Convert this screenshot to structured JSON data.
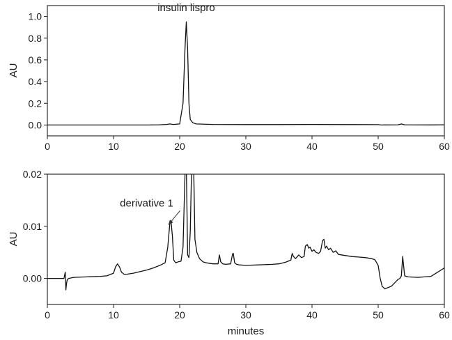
{
  "chart_data": [
    {
      "type": "line",
      "title": "",
      "xlabel": "",
      "ylabel": "AU",
      "xlim": [
        0,
        60
      ],
      "ylim": [
        -0.1,
        1.1
      ],
      "xticks": [
        0,
        10,
        20,
        30,
        40,
        50,
        60
      ],
      "yticks": [
        0.0,
        0.2,
        0.4,
        0.6,
        0.8,
        1.0
      ],
      "ytick_labels": [
        "0.0",
        "0.2",
        "0.4",
        "0.6",
        "0.8",
        "1.0"
      ],
      "grid": false,
      "annotations": [
        {
          "text": "insulin lispro",
          "x": 21,
          "y": 1.05
        }
      ],
      "series": [
        {
          "x": [
            0,
            5,
            10,
            15,
            17,
            18,
            18.5,
            19,
            20,
            20.5,
            20.8,
            21.0,
            21.2,
            21.4,
            21.6,
            22,
            22.5,
            25,
            30,
            35,
            40,
            45,
            50,
            50.5,
            51,
            53,
            53.3,
            53.5,
            53.7,
            54,
            58,
            60
          ],
          "y": [
            0.0,
            0.0,
            0.0,
            0.0,
            0.002,
            0.005,
            0.01,
            0.005,
            0.01,
            0.2,
            0.7,
            0.95,
            0.7,
            0.2,
            0.05,
            0.02,
            0.01,
            0.005,
            0.004,
            0.004,
            0.005,
            0.004,
            0.003,
            0.0,
            0.001,
            0.002,
            0.006,
            0.01,
            0.006,
            0.002,
            0.001,
            0.002
          ]
        }
      ]
    },
    {
      "type": "line",
      "title": "",
      "xlabel": "minutes",
      "ylabel": "AU",
      "xlim": [
        0,
        60
      ],
      "ylim": [
        -0.005,
        0.02
      ],
      "xticks": [
        0,
        10,
        20,
        30,
        40,
        50,
        60
      ],
      "yticks": [
        0.0,
        0.01,
        0.02
      ],
      "ytick_labels": [
        "0.00",
        "0.01",
        "0.02"
      ],
      "grid": false,
      "annotations": [
        {
          "text": "derivative 1",
          "x": 15,
          "y": 0.0138,
          "arrow_to": [
            18.3,
            0.0103
          ]
        }
      ],
      "series": [
        {
          "x": [
            0,
            2.5,
            2.7,
            2.8,
            2.9,
            3.0,
            3.2,
            4,
            6,
            8,
            9,
            10,
            10.3,
            10.6,
            10.9,
            11.2,
            11.6,
            12,
            13,
            14,
            15,
            16,
            17,
            17.8,
            18.2,
            18.5,
            18.7,
            18.9,
            19.1,
            19.4,
            19.8,
            20.2,
            20.5,
            20.7,
            20.85,
            21.0,
            21.2,
            21.4,
            21.6,
            21.75,
            21.9,
            22.1,
            22.3,
            22.6,
            23,
            23.5,
            24,
            25,
            25.8,
            26.0,
            26.2,
            26.5,
            27,
            27.7,
            28.0,
            28.1,
            28.3,
            28.6,
            29,
            30,
            32,
            34,
            35,
            36,
            36.8,
            37.0,
            37.2,
            37.5,
            38,
            38.4,
            38.8,
            39.0,
            39.3,
            39.5,
            39.7,
            40,
            40.3,
            40.6,
            41,
            41.3,
            41.6,
            41.8,
            42.0,
            42.2,
            42.5,
            42.8,
            43.2,
            43.6,
            44,
            45,
            46,
            47,
            48,
            49,
            49.5,
            50.0,
            50.3,
            50.6,
            51,
            52,
            53.0,
            53.3,
            53.5,
            53.7,
            54.0,
            54.5,
            56,
            58,
            60
          ],
          "y": [
            0.0,
            0.0,
            0.0012,
            -0.0022,
            -0.001,
            -0.0003,
            0.0,
            0.0002,
            0.0003,
            0.0004,
            0.0005,
            0.001,
            0.0022,
            0.0028,
            0.0022,
            0.0012,
            0.0008,
            0.0008,
            0.001,
            0.0013,
            0.0016,
            0.002,
            0.0025,
            0.003,
            0.006,
            0.0105,
            0.011,
            0.008,
            0.0035,
            0.003,
            0.0032,
            0.0033,
            0.006,
            0.015,
            0.022,
            0.022,
            0.0045,
            0.004,
            0.009,
            0.018,
            0.022,
            0.022,
            0.0075,
            0.005,
            0.0038,
            0.0032,
            0.003,
            0.0028,
            0.0028,
            0.0045,
            0.0032,
            0.0028,
            0.0027,
            0.0028,
            0.0047,
            0.0048,
            0.003,
            0.0027,
            0.0026,
            0.0025,
            0.0026,
            0.0027,
            0.0028,
            0.0031,
            0.0035,
            0.0048,
            0.0042,
            0.0038,
            0.0045,
            0.004,
            0.0042,
            0.0062,
            0.0065,
            0.0058,
            0.006,
            0.0052,
            0.0055,
            0.005,
            0.0048,
            0.0052,
            0.0073,
            0.0075,
            0.0058,
            0.0062,
            0.0055,
            0.0058,
            0.005,
            0.0053,
            0.0046,
            0.0044,
            0.0042,
            0.0041,
            0.004,
            0.0038,
            0.0036,
            0.0025,
            0.0001,
            -0.0015,
            -0.002,
            -0.0015,
            -0.0002,
            0.0,
            0.0005,
            0.0042,
            0.0005,
            0.0003,
            0.0002,
            0.0004,
            0.002
          ]
        }
      ]
    }
  ]
}
